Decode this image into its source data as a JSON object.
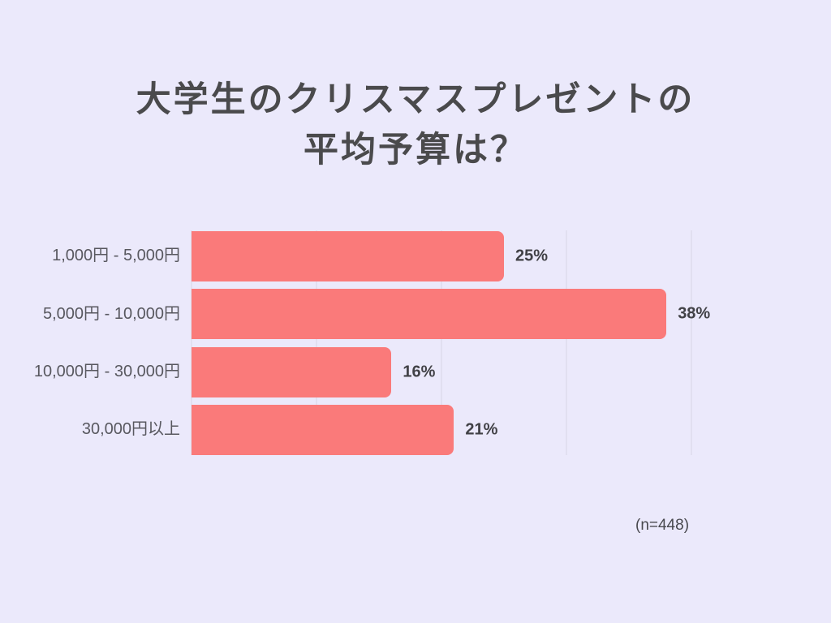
{
  "theme": {
    "background_color": "#ebe9fb",
    "bar_color": "#fa7a7a",
    "gridline_color": "#d7d5e5",
    "title_color": "#4a4a4c"
  },
  "title": {
    "line1": "大学生のクリスマスプレゼントの",
    "line2": "平均予算は？"
  },
  "footnote": "(n=448)",
  "chart_data": {
    "type": "bar",
    "orientation": "horizontal",
    "title": "大学生のクリスマスプレゼントの平均予算は？",
    "categories": [
      "1,000円 - 5,000円",
      "5,000円 - 10,000円",
      "10,000円 - 30,000円",
      "30,000円以上"
    ],
    "values": [
      25,
      38,
      16,
      21
    ],
    "value_labels": [
      "25%",
      "38%",
      "16%",
      "21%"
    ],
    "unit": "%",
    "xlabel": "",
    "ylabel": "",
    "xlim": [
      0,
      40
    ],
    "xticks": [
      0,
      10,
      20,
      30,
      40
    ],
    "grid": true,
    "legend": false,
    "sample_size_note": "(n=448)"
  }
}
